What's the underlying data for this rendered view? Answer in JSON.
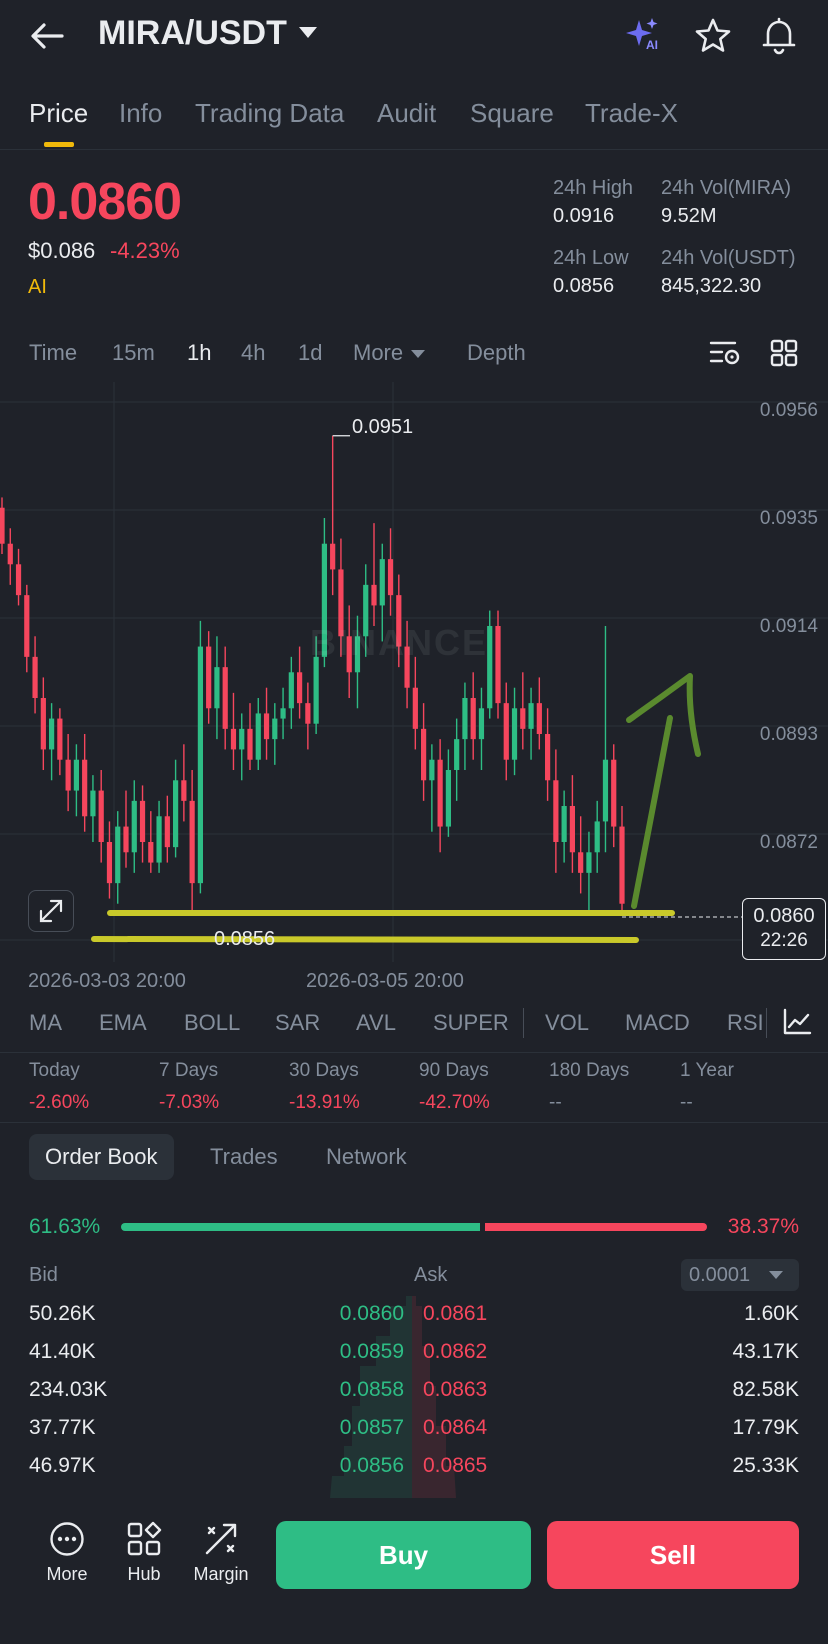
{
  "header": {
    "title": "MIRA/USDT",
    "ai_icon_label": "AI"
  },
  "tabs": [
    "Price",
    "Info",
    "Trading Data",
    "Audit",
    "Square",
    "Trade-X"
  ],
  "ticker": {
    "last_price": "0.0860",
    "usd_price": "$0.086",
    "change": "-4.23%",
    "ai_tag": "AI",
    "high_label": "24h High",
    "high_value": "0.0916",
    "vol_mira_label": "24h Vol(MIRA)",
    "vol_mira_value": "9.52M",
    "low_label": "24h Low",
    "low_value": "0.0856",
    "vol_usdt_label": "24h Vol(USDT)",
    "vol_usdt_value": "845,322.30"
  },
  "timeframes": [
    "Time",
    "15m",
    "1h",
    "4h",
    "1d",
    "More",
    "Depth"
  ],
  "chart": {
    "y_labels": [
      "0.0956",
      "0.0935",
      "0.0914",
      "0.0893",
      "0.0872"
    ],
    "x_labels": [
      "2026-03-03 20:00",
      "2026-03-05 20:00"
    ],
    "high_marker": "0.0951",
    "low_marker": "0.0856",
    "current_price": "0.0860",
    "countdown": "22:26",
    "watermark": "BINANCE",
    "colors": {
      "up": "#2ebd85",
      "down": "#f6465d",
      "annotation_yellow": "#c9c92a",
      "annotation_green": "#5a8a2e"
    }
  },
  "chart_data": {
    "type": "candlestick",
    "interval": "1h",
    "ylim": [
      0.0845,
      0.0962
    ],
    "candles": [
      [
        0.0937,
        0.0939,
        0.0928,
        0.093
      ],
      [
        0.093,
        0.0933,
        0.0922,
        0.0926
      ],
      [
        0.0926,
        0.0929,
        0.0918,
        0.092
      ],
      [
        0.092,
        0.0922,
        0.0905,
        0.0908
      ],
      [
        0.0908,
        0.0912,
        0.0897,
        0.09
      ],
      [
        0.09,
        0.0904,
        0.0886,
        0.089
      ],
      [
        0.089,
        0.0899,
        0.0884,
        0.0896
      ],
      [
        0.0896,
        0.0898,
        0.0885,
        0.0888
      ],
      [
        0.0888,
        0.0893,
        0.0878,
        0.0882
      ],
      [
        0.0882,
        0.0891,
        0.0877,
        0.0888
      ],
      [
        0.0888,
        0.0893,
        0.0874,
        0.0877
      ],
      [
        0.0877,
        0.0885,
        0.0872,
        0.0882
      ],
      [
        0.0882,
        0.0886,
        0.0868,
        0.0872
      ],
      [
        0.0872,
        0.0876,
        0.0861,
        0.0864
      ],
      [
        0.0864,
        0.0878,
        0.086,
        0.0875
      ],
      [
        0.0875,
        0.0882,
        0.0867,
        0.087
      ],
      [
        0.087,
        0.0884,
        0.0866,
        0.088
      ],
      [
        0.088,
        0.0883,
        0.0868,
        0.0872
      ],
      [
        0.0872,
        0.0878,
        0.0866,
        0.0868
      ],
      [
        0.0868,
        0.088,
        0.0866,
        0.0877
      ],
      [
        0.0877,
        0.0881,
        0.0868,
        0.0871
      ],
      [
        0.0871,
        0.0888,
        0.0869,
        0.0884
      ],
      [
        0.0884,
        0.0891,
        0.0876,
        0.088
      ],
      [
        0.088,
        0.0886,
        0.0858,
        0.0864
      ],
      [
        0.0864,
        0.0915,
        0.0862,
        0.091
      ],
      [
        0.091,
        0.0913,
        0.0895,
        0.0898
      ],
      [
        0.0898,
        0.0912,
        0.0892,
        0.0906
      ],
      [
        0.0906,
        0.091,
        0.089,
        0.0894
      ],
      [
        0.0894,
        0.0901,
        0.0886,
        0.089
      ],
      [
        0.089,
        0.0897,
        0.0884,
        0.0894
      ],
      [
        0.0894,
        0.0899,
        0.0886,
        0.0888
      ],
      [
        0.0888,
        0.09,
        0.0886,
        0.0897
      ],
      [
        0.0897,
        0.0902,
        0.0888,
        0.0892
      ],
      [
        0.0892,
        0.0899,
        0.0887,
        0.0896
      ],
      [
        0.0896,
        0.0902,
        0.0892,
        0.0898
      ],
      [
        0.0898,
        0.0908,
        0.0894,
        0.0905
      ],
      [
        0.0905,
        0.091,
        0.0896,
        0.0899
      ],
      [
        0.0899,
        0.0903,
        0.089,
        0.0895
      ],
      [
        0.0895,
        0.0912,
        0.0893,
        0.0908
      ],
      [
        0.0908,
        0.0935,
        0.0906,
        0.093
      ],
      [
        0.093,
        0.0951,
        0.092,
        0.0925
      ],
      [
        0.0925,
        0.0931,
        0.0908,
        0.0912
      ],
      [
        0.0912,
        0.0918,
        0.09,
        0.0905
      ],
      [
        0.0905,
        0.0916,
        0.0898,
        0.0912
      ],
      [
        0.0912,
        0.0926,
        0.0908,
        0.0922
      ],
      [
        0.0922,
        0.0934,
        0.0914,
        0.0918
      ],
      [
        0.0918,
        0.093,
        0.0911,
        0.0927
      ],
      [
        0.0927,
        0.0933,
        0.0916,
        0.092
      ],
      [
        0.092,
        0.0924,
        0.0906,
        0.091
      ],
      [
        0.091,
        0.0915,
        0.0898,
        0.0902
      ],
      [
        0.0902,
        0.0908,
        0.089,
        0.0894
      ],
      [
        0.0894,
        0.0899,
        0.088,
        0.0884
      ],
      [
        0.0884,
        0.0891,
        0.0874,
        0.0888
      ],
      [
        0.0888,
        0.0892,
        0.087,
        0.0875
      ],
      [
        0.0875,
        0.089,
        0.0873,
        0.0886
      ],
      [
        0.0886,
        0.0896,
        0.088,
        0.0892
      ],
      [
        0.0892,
        0.0903,
        0.0886,
        0.09
      ],
      [
        0.09,
        0.0905,
        0.0888,
        0.0892
      ],
      [
        0.0892,
        0.0902,
        0.0886,
        0.0898
      ],
      [
        0.0898,
        0.0917,
        0.0896,
        0.0914
      ],
      [
        0.0914,
        0.0917,
        0.0896,
        0.0899
      ],
      [
        0.0899,
        0.0903,
        0.0884,
        0.0888
      ],
      [
        0.0888,
        0.0902,
        0.0885,
        0.0898
      ],
      [
        0.0898,
        0.0905,
        0.089,
        0.0894
      ],
      [
        0.0894,
        0.0902,
        0.0888,
        0.0899
      ],
      [
        0.0899,
        0.0904,
        0.089,
        0.0893
      ],
      [
        0.0893,
        0.0898,
        0.088,
        0.0884
      ],
      [
        0.0884,
        0.089,
        0.0866,
        0.0872
      ],
      [
        0.0872,
        0.0882,
        0.0868,
        0.0879
      ],
      [
        0.0879,
        0.0885,
        0.0866,
        0.087
      ],
      [
        0.087,
        0.0877,
        0.0862,
        0.0866
      ],
      [
        0.0866,
        0.0874,
        0.0858,
        0.087
      ],
      [
        0.087,
        0.088,
        0.0866,
        0.0876
      ],
      [
        0.0876,
        0.0914,
        0.087,
        0.0888
      ],
      [
        0.0888,
        0.0891,
        0.0871,
        0.0875
      ],
      [
        0.0875,
        0.0879,
        0.0858,
        0.086
      ]
    ]
  },
  "indicators": [
    "MA",
    "EMA",
    "BOLL",
    "SAR",
    "AVL",
    "SUPER",
    "VOL",
    "MACD",
    "RSI"
  ],
  "performance": [
    {
      "label": "Today",
      "value": "-2.60%"
    },
    {
      "label": "7 Days",
      "value": "-7.03%"
    },
    {
      "label": "30 Days",
      "value": "-13.91%"
    },
    {
      "label": "90 Days",
      "value": "-42.70%"
    },
    {
      "label": "180 Days",
      "value": "--"
    },
    {
      "label": "1 Year",
      "value": "--"
    }
  ],
  "orderbook_tabs": [
    "Order Book",
    "Trades",
    "Network"
  ],
  "orderbook": {
    "bid_pct": "61.63%",
    "ask_pct": "38.37%",
    "bid_ratio": 0.6163,
    "bid_label": "Bid",
    "ask_label": "Ask",
    "precision": "0.0001",
    "rows": [
      {
        "bid_qty": "50.26K",
        "bid_price": "0.0860",
        "ask_price": "0.0861",
        "ask_qty": "1.60K"
      },
      {
        "bid_qty": "41.40K",
        "bid_price": "0.0859",
        "ask_price": "0.0862",
        "ask_qty": "43.17K"
      },
      {
        "bid_qty": "234.03K",
        "bid_price": "0.0858",
        "ask_price": "0.0863",
        "ask_qty": "82.58K"
      },
      {
        "bid_qty": "37.77K",
        "bid_price": "0.0857",
        "ask_price": "0.0864",
        "ask_qty": "17.79K"
      },
      {
        "bid_qty": "46.97K",
        "bid_price": "0.0856",
        "ask_price": "0.0865",
        "ask_qty": "25.33K"
      }
    ]
  },
  "bottom": {
    "more": "More",
    "hub": "Hub",
    "margin": "Margin",
    "buy": "Buy",
    "sell": "Sell"
  }
}
